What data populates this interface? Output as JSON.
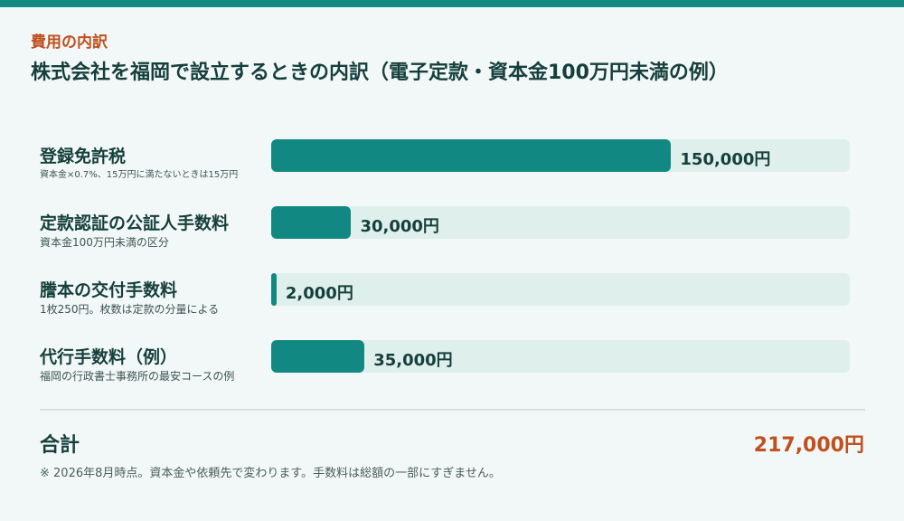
{
  "header": {
    "eyebrow": "費用の内訳",
    "title": "株式会社を福岡で設立するときの内訳（電子定款・資本金100万円未満の例）"
  },
  "chart_data": {
    "type": "bar",
    "orientation": "horizontal",
    "xlim": [
      0,
      217000
    ],
    "categories": [
      "登録免許税",
      "定款認証の公証人手数料",
      "謄本の交付手数料",
      "代行手数料（例）"
    ],
    "notes": [
      "資本金×0.7%、15万円に満たないときは15万円",
      "資本金100万円未満の区分",
      "1枚250円。枚数は定款の分量による",
      "福岡の行政書士事務所の最安コースの例"
    ],
    "values": [
      150000,
      30000,
      2000,
      35000
    ],
    "value_labels": [
      "150,000円",
      "30,000円",
      "2,000円",
      "35,000円"
    ],
    "bar_color": "#118882",
    "track_color": "#dfefec"
  },
  "total": {
    "label": "合計",
    "value": "217,000円"
  },
  "footnote": "※ 2026年8月時点。資本金や依頼先で変わります。手数料は総額の一部にすぎません。",
  "colors": {
    "accent": "#148a82",
    "heading": "#153f3c",
    "highlight": "#c0501f"
  }
}
